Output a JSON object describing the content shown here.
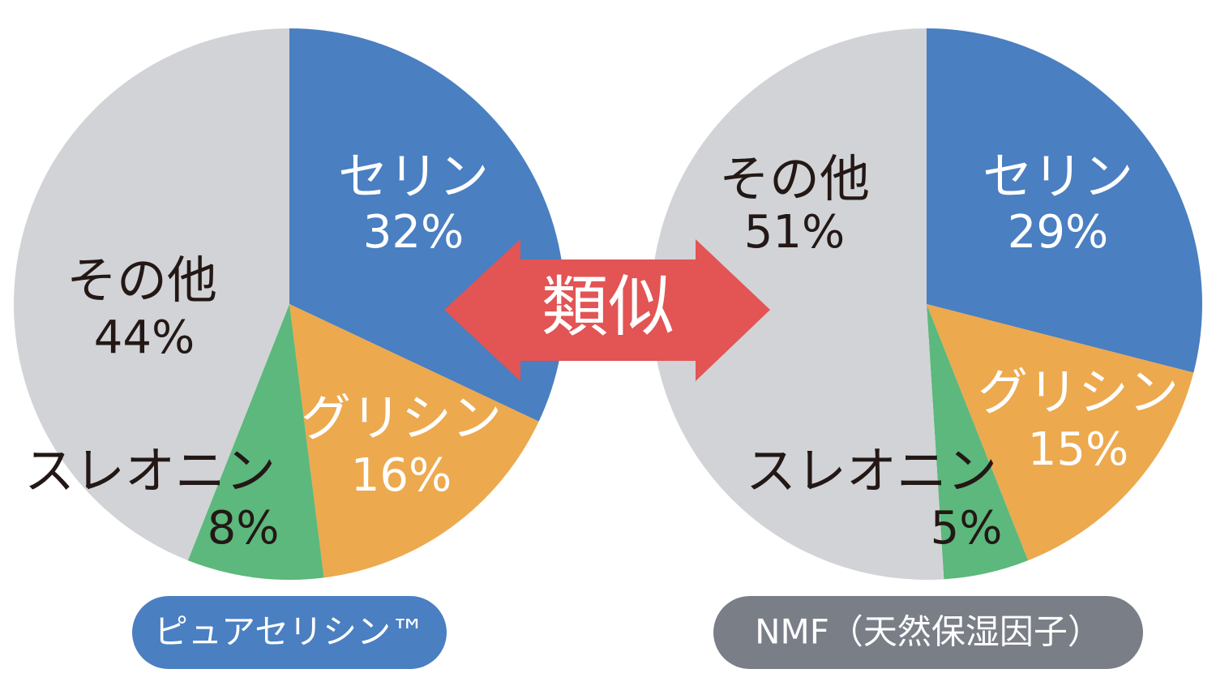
{
  "chart_data": [
    {
      "type": "pie",
      "title": "ピュアセリシン™",
      "categories": [
        "セリン",
        "グリシン",
        "スレオニン",
        "その他"
      ],
      "values": [
        32,
        16,
        8,
        44
      ],
      "value_labels": [
        "32%",
        "16%",
        "8%",
        "44%"
      ],
      "colors": [
        "#4a7fc1",
        "#eca94e",
        "#5cb87c",
        "#d1d3d6"
      ],
      "title_color": "#4a7fc1"
    },
    {
      "type": "pie",
      "title": "NMF（天然保湿因子）",
      "categories": [
        "セリン",
        "グリシン",
        "スレオニン",
        "その他"
      ],
      "values": [
        29,
        15,
        5,
        51
      ],
      "value_labels": [
        "29%",
        "15%",
        "5%",
        "51%"
      ],
      "colors": [
        "#4a7fc1",
        "#eca94e",
        "#5cb87c",
        "#d1d3d6"
      ],
      "title_color": "#7a7e87"
    }
  ],
  "annotation": "類似"
}
